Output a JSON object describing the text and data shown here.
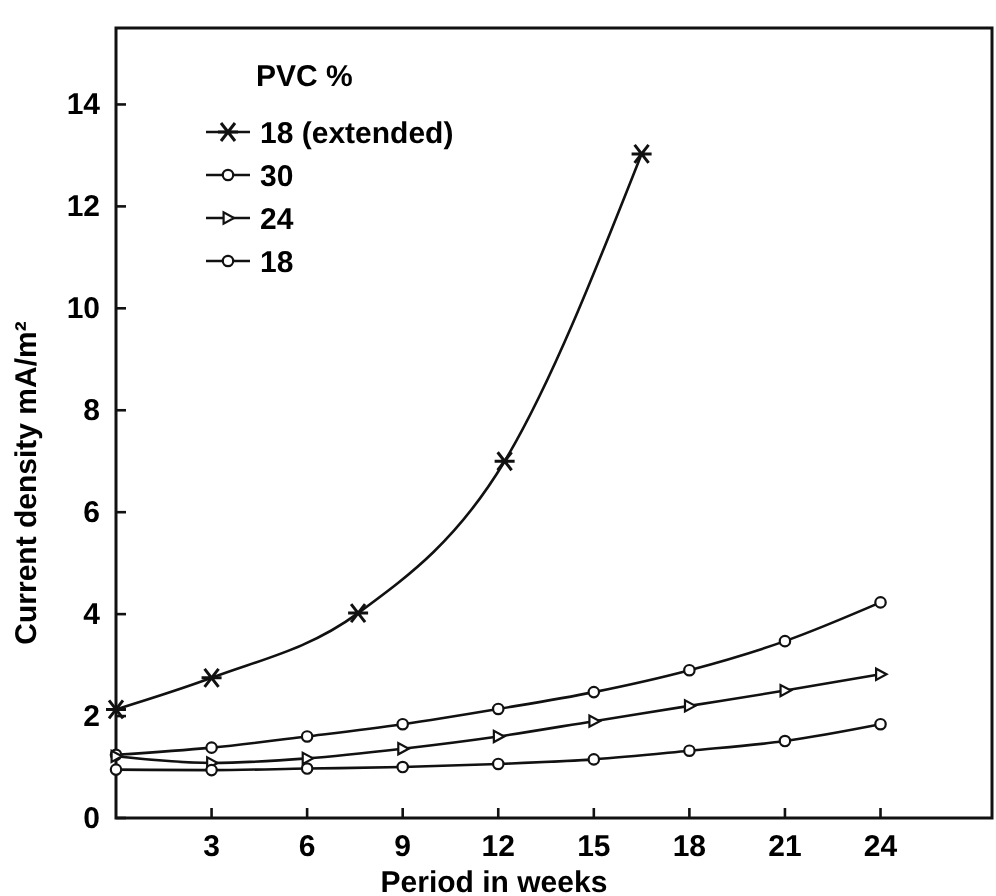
{
  "chart_data": {
    "type": "line",
    "xlabel": "Period in weeks",
    "ylabel": "Current density mA/m²",
    "legend_title": "PVC %",
    "legend": "top left",
    "grid": false,
    "line_style": "solid",
    "xlim": [
      0,
      27.5
    ],
    "xticks": [
      3,
      6,
      9,
      12,
      15,
      18,
      21,
      24
    ],
    "ylim": [
      0,
      15.5
    ],
    "yticks": [
      0,
      2,
      4,
      6,
      8,
      10,
      12,
      14
    ],
    "series": [
      {
        "name": "18 (extended)",
        "color": "#111111",
        "marker": "cross",
        "x": [
          0,
          3,
          7.6,
          12.2,
          16.5
        ],
        "values": [
          2.13,
          2.75,
          4.02,
          7.0,
          13.03
        ]
      },
      {
        "name": "30",
        "color": "#111111",
        "marker": "circle",
        "x": [
          0,
          3,
          6,
          9,
          12,
          15,
          18,
          21,
          24
        ],
        "values": [
          1.24,
          1.38,
          1.6,
          1.84,
          2.14,
          2.47,
          2.9,
          3.47,
          4.23
        ]
      },
      {
        "name": "24",
        "color": "#111111",
        "marker": "triangle",
        "x": [
          0,
          3,
          6,
          9,
          12,
          15,
          18,
          21,
          24
        ],
        "values": [
          1.21,
          1.08,
          1.17,
          1.36,
          1.6,
          1.9,
          2.2,
          2.5,
          2.82
        ]
      },
      {
        "name": "18",
        "color": "#111111",
        "marker": "circle",
        "x": [
          0,
          3,
          6,
          9,
          12,
          15,
          18,
          21,
          24
        ],
        "values": [
          0.95,
          0.94,
          0.97,
          1.0,
          1.06,
          1.15,
          1.32,
          1.51,
          1.84
        ]
      }
    ]
  }
}
